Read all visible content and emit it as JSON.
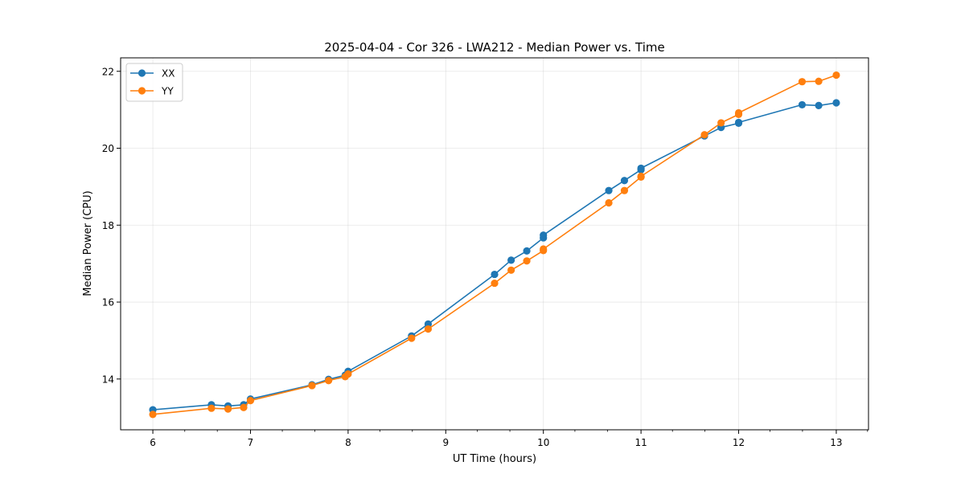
{
  "chart_data": {
    "type": "line",
    "title": "2025-04-04 - Cor 326 - LWA212 - Median Power vs. Time",
    "xlabel": "UT Time (hours)",
    "ylabel": "Median Power (CPU)",
    "xlim": [
      5.67,
      13.33
    ],
    "ylim": [
      12.68,
      22.35
    ],
    "xticks": [
      6,
      7,
      8,
      9,
      10,
      11,
      12,
      13
    ],
    "yticks": [
      14,
      16,
      18,
      20,
      22
    ],
    "x_minor_step": 0.333,
    "grid": true,
    "legend_position": "top-left",
    "series": [
      {
        "name": "XX",
        "color": "#1f77b4",
        "points": [
          [
            6.0,
            13.2
          ],
          [
            6.6,
            13.33
          ],
          [
            6.77,
            13.3
          ],
          [
            6.93,
            13.33
          ],
          [
            7.0,
            13.48
          ],
          [
            7.63,
            13.85
          ],
          [
            7.8,
            13.99
          ],
          [
            7.97,
            14.1
          ],
          [
            8.0,
            14.2
          ],
          [
            8.65,
            15.12
          ],
          [
            8.82,
            15.43
          ],
          [
            9.5,
            16.72
          ],
          [
            9.67,
            17.09
          ],
          [
            9.83,
            17.33
          ],
          [
            10.0,
            17.67
          ],
          [
            10.0,
            17.74
          ],
          [
            10.67,
            18.9
          ],
          [
            10.83,
            19.16
          ],
          [
            11.0,
            19.44
          ],
          [
            11.0,
            19.48
          ],
          [
            11.65,
            20.32
          ],
          [
            11.82,
            20.54
          ],
          [
            12.0,
            20.65
          ],
          [
            12.0,
            20.67
          ],
          [
            12.65,
            21.13
          ],
          [
            12.82,
            21.11
          ],
          [
            13.0,
            21.18
          ]
        ]
      },
      {
        "name": "YY",
        "color": "#ff7f0e",
        "points": [
          [
            6.0,
            13.08
          ],
          [
            6.6,
            13.24
          ],
          [
            6.77,
            13.22
          ],
          [
            6.93,
            13.26
          ],
          [
            7.0,
            13.44
          ],
          [
            7.63,
            13.83
          ],
          [
            7.8,
            13.96
          ],
          [
            7.97,
            14.06
          ],
          [
            8.0,
            14.13
          ],
          [
            8.65,
            15.06
          ],
          [
            8.82,
            15.3
          ],
          [
            9.5,
            16.49
          ],
          [
            9.67,
            16.83
          ],
          [
            9.83,
            17.07
          ],
          [
            10.0,
            17.34
          ],
          [
            10.0,
            17.38
          ],
          [
            10.67,
            18.58
          ],
          [
            10.83,
            18.9
          ],
          [
            11.0,
            19.25
          ],
          [
            11.0,
            19.27
          ],
          [
            11.65,
            20.35
          ],
          [
            11.82,
            20.66
          ],
          [
            12.0,
            20.88
          ],
          [
            12.0,
            20.92
          ],
          [
            12.65,
            21.73
          ],
          [
            12.82,
            21.74
          ],
          [
            13.0,
            21.9
          ]
        ]
      }
    ]
  }
}
